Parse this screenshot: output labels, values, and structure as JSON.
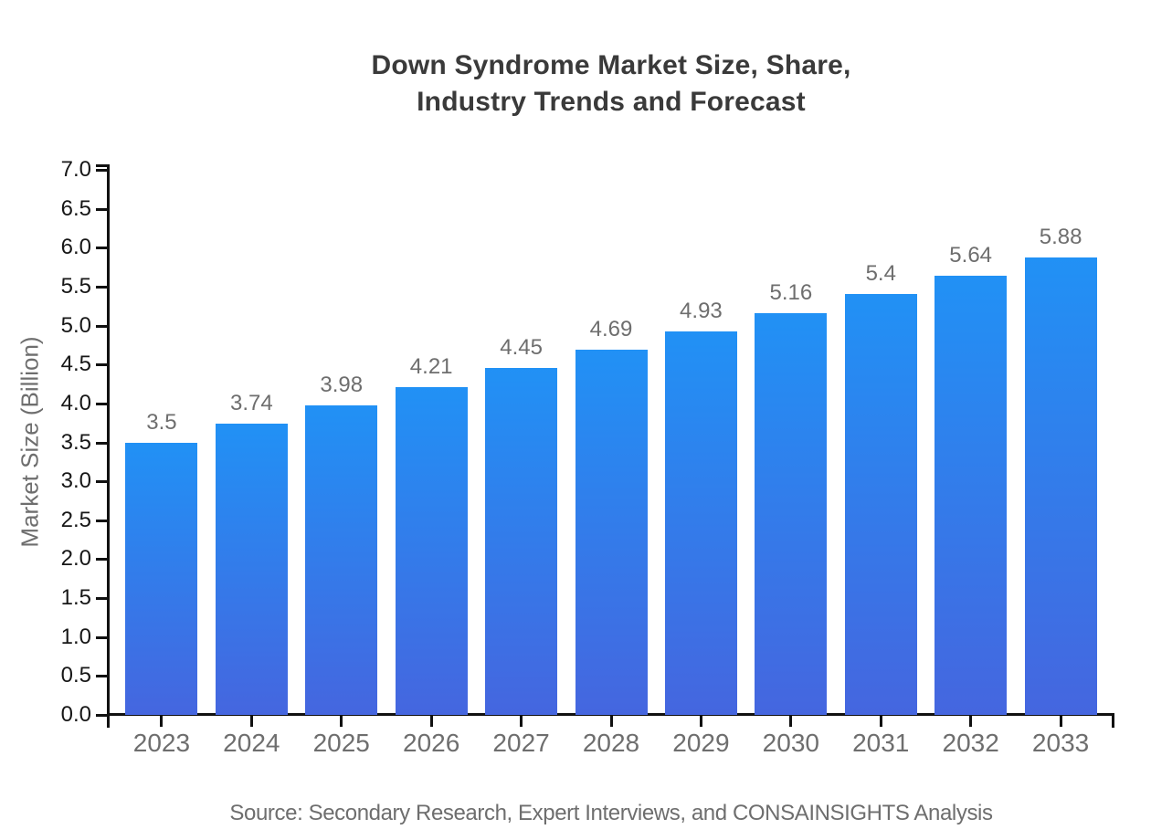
{
  "title": {
    "line1": "Down Syndrome Market Size, Share,",
    "line2": "Industry Trends and Forecast"
  },
  "source_note": "Source: Secondary Research, Expert Interviews, and CONSAINSIGHTS Analysis",
  "chart_data": {
    "type": "bar",
    "title": "Down Syndrome Market Size, Share, Industry Trends and Forecast",
    "categories": [
      "2023",
      "2024",
      "2025",
      "2026",
      "2027",
      "2028",
      "2029",
      "2030",
      "2031",
      "2032",
      "2033"
    ],
    "values": [
      3.5,
      3.74,
      3.98,
      4.21,
      4.45,
      4.69,
      4.93,
      5.16,
      5.4,
      5.64,
      5.88
    ],
    "bar_labels": [
      "3.5",
      "3.74",
      "3.98",
      "4.21",
      "4.45",
      "4.69",
      "4.93",
      "5.16",
      "5.4",
      "5.64",
      "5.88"
    ],
    "xlabel": "",
    "ylabel": "Market Size (Billion)",
    "ylim": [
      0,
      7
    ],
    "ytick_step": 0.5,
    "grid": false,
    "legend": "none",
    "colors": {
      "bar_gradient_top": "#2191f5",
      "bar_gradient_bottom": "#4566df",
      "axis": "#111111",
      "title_text": "#3a3a3a",
      "tick_label_text": "#171717",
      "muted_text": "#6e6e6e"
    }
  }
}
